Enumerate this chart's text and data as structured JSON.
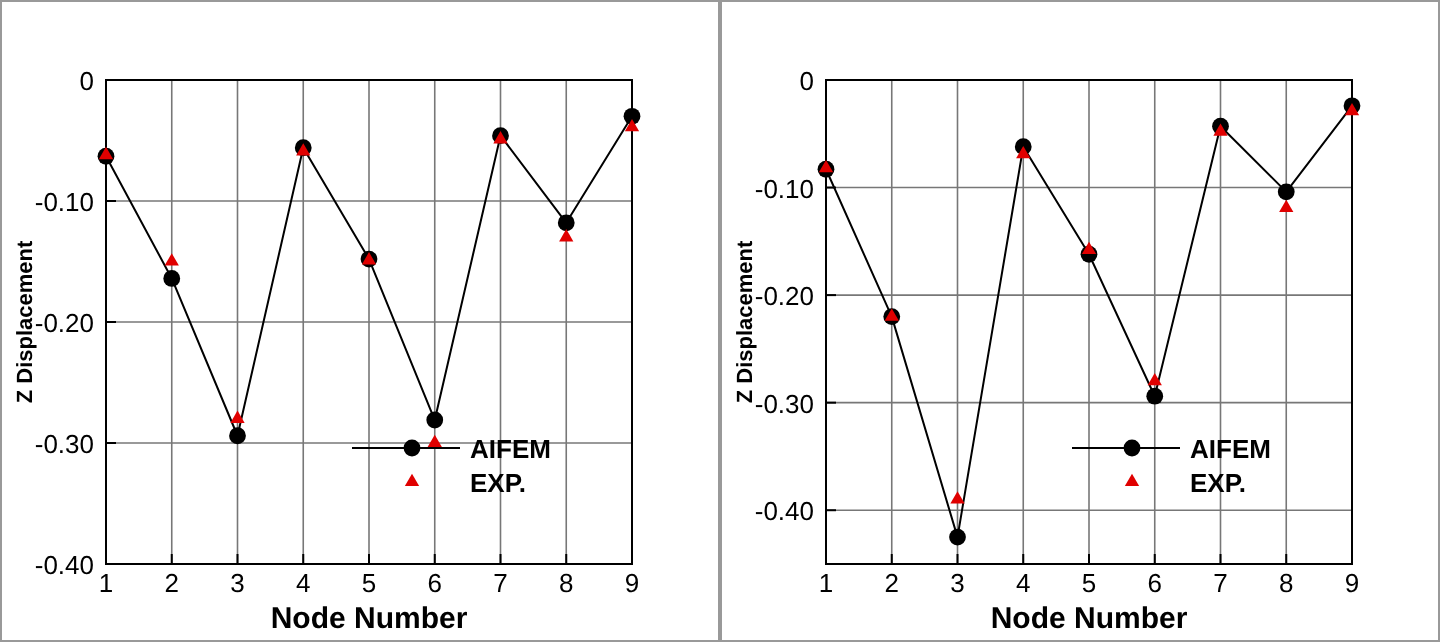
{
  "chart_data": [
    {
      "type": "line",
      "xlabel": "Node Number",
      "ylabel": "Z Displacement",
      "x": [
        1,
        2,
        3,
        4,
        5,
        6,
        7,
        8,
        9
      ],
      "xlim": [
        1,
        9
      ],
      "xticks": [
        1,
        2,
        3,
        4,
        5,
        6,
        7,
        8,
        9
      ],
      "ylim": [
        -0.4,
        0
      ],
      "yticks": [
        {
          "value": -0.4,
          "label": "-0.40"
        },
        {
          "value": -0.3,
          "label": "-0.30"
        },
        {
          "value": -0.2,
          "label": "-0.20"
        },
        {
          "value": -0.1,
          "label": "-0.10"
        },
        0
      ],
      "grid": true,
      "legend": "bottom right",
      "series": [
        {
          "name": "AIFEM",
          "type": "line",
          "color": "#000000",
          "marker": "circle",
          "values": [
            -0.063,
            -0.164,
            -0.294,
            -0.056,
            -0.148,
            -0.281,
            -0.046,
            -0.118,
            -0.03
          ]
        },
        {
          "name": "EXP.",
          "type": "scatter",
          "color": "#e00000",
          "marker": "triangle",
          "values": [
            -0.062,
            -0.15,
            -0.28,
            -0.059,
            -0.149,
            -0.3,
            -0.049,
            -0.13,
            -0.039
          ]
        }
      ]
    },
    {
      "type": "line",
      "xlabel": "Node Number",
      "ylabel": "Z Displacement",
      "x": [
        1,
        2,
        3,
        4,
        5,
        6,
        7,
        8,
        9
      ],
      "xlim": [
        1,
        9
      ],
      "xticks": [
        1,
        2,
        3,
        4,
        5,
        6,
        7,
        8,
        9
      ],
      "ylim": [
        -0.45,
        0
      ],
      "yticks": [
        {
          "value": -0.4,
          "label": "-0.40"
        },
        {
          "value": -0.3,
          "label": "-0.30"
        },
        {
          "value": -0.2,
          "label": "-0.20"
        },
        {
          "value": -0.1,
          "label": "-0.10"
        },
        0
      ],
      "grid": true,
      "legend": "bottom right",
      "series": [
        {
          "name": "AIFEM",
          "type": "line",
          "color": "#000000",
          "marker": "circle",
          "values": [
            -0.083,
            -0.22,
            -0.425,
            -0.062,
            -0.162,
            -0.294,
            -0.043,
            -0.104,
            -0.024
          ]
        },
        {
          "name": "EXP.",
          "type": "scatter",
          "color": "#e00000",
          "marker": "triangle",
          "values": [
            -0.082,
            -0.22,
            -0.39,
            -0.069,
            -0.158,
            -0.28,
            -0.048,
            -0.119,
            -0.029
          ]
        }
      ]
    }
  ]
}
